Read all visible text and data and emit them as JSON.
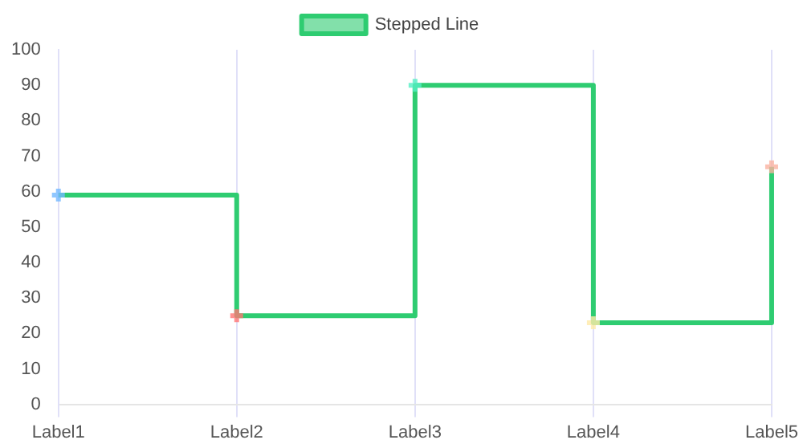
{
  "chart_data": {
    "type": "step",
    "categories": [
      "Label1",
      "Label2",
      "Label3",
      "Label4",
      "Label5"
    ],
    "series": [
      {
        "name": "Stepped Line",
        "color": "#2ecc71",
        "colors": [
          "#74b9ff",
          "#ff7675",
          "#55efc4",
          "#ffeaa7",
          "#fab1a0"
        ],
        "values": [
          59,
          25,
          90,
          23,
          67
        ]
      }
    ],
    "ylim": [
      0,
      100
    ],
    "yticks": [
      0,
      10,
      20,
      30,
      40,
      50,
      60,
      70,
      80,
      90,
      100
    ],
    "grid": "x",
    "legend": "top",
    "marker": "cross"
  }
}
